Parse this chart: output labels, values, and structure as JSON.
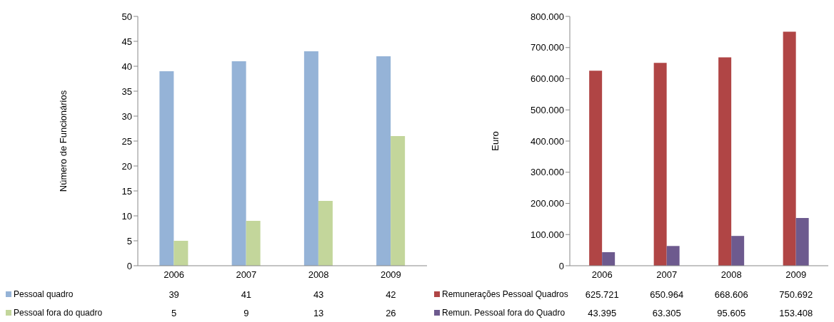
{
  "chart_data": [
    {
      "type": "bar",
      "ylabel": "Número de Funcionários",
      "categories": [
        "2006",
        "2007",
        "2008",
        "2009"
      ],
      "ylim": [
        0,
        50
      ],
      "yticks": [
        0,
        5,
        10,
        15,
        20,
        25,
        30,
        35,
        40,
        45,
        50
      ],
      "legend": "bottom",
      "data_labels": true,
      "series": [
        {
          "name": "Pessoal quadro",
          "color": "#95b3d7",
          "values": [
            39,
            41,
            43,
            42
          ]
        },
        {
          "name": "Pessoal fora do quadro",
          "color": "#c3d69b",
          "values": [
            5,
            9,
            13,
            26
          ]
        }
      ]
    },
    {
      "type": "bar",
      "ylabel": "Euro",
      "categories": [
        "2006",
        "2007",
        "2008",
        "2009"
      ],
      "ylim": [
        0,
        800000
      ],
      "yticks": [
        {
          "value": 0,
          "label": "0"
        },
        {
          "value": 100000,
          "label": "100.000"
        },
        {
          "value": 200000,
          "label": "200.000"
        },
        {
          "value": 300000,
          "label": "300.000"
        },
        {
          "value": 400000,
          "label": "400.000"
        },
        {
          "value": 500000,
          "label": "500.000"
        },
        {
          "value": 600000,
          "label": "600.000"
        },
        {
          "value": 700000,
          "label": "700.000"
        },
        {
          "value": 800000,
          "label": "800.000"
        }
      ],
      "legend": "bottom",
      "series": [
        {
          "name": "Remunerações Pessoal Quadros",
          "color": "#b04545",
          "values": [
            625721,
            650964,
            668606,
            750692
          ],
          "value_labels": [
            "625.721",
            "650.964",
            "668.606",
            "750.692"
          ]
        },
        {
          "name": "Remun. Pessoal fora do Quadro",
          "color": "#6d5a8e",
          "values": [
            43395,
            63305,
            95605,
            153408
          ],
          "value_labels": [
            "43.395",
            "63.305",
            "95.605",
            "153.408"
          ]
        }
      ]
    }
  ]
}
